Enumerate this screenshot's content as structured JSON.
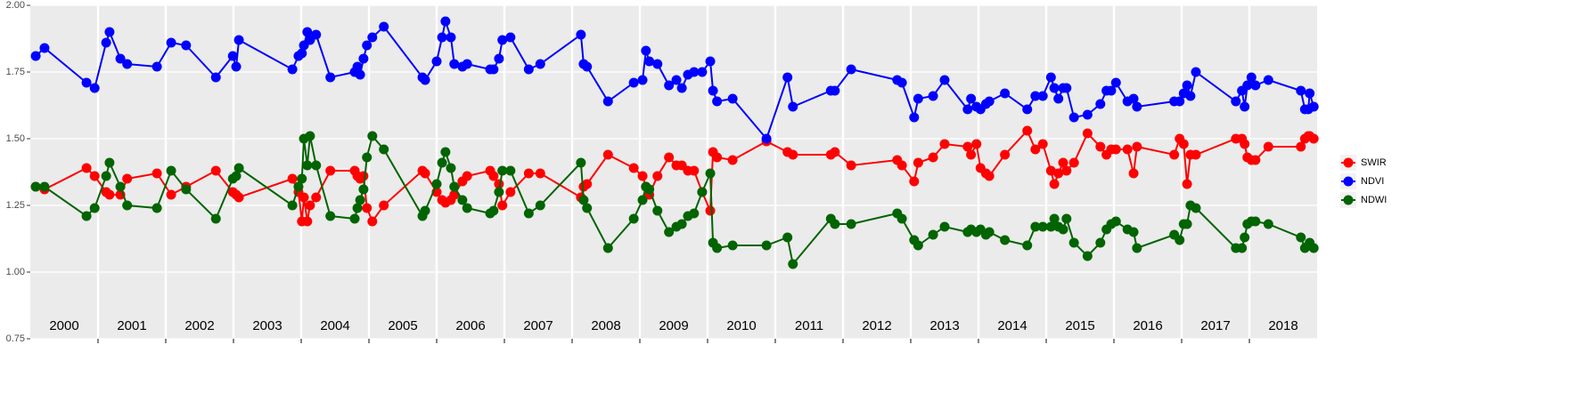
{
  "chart_data": {
    "type": "line",
    "xlim": [
      2000,
      2019
    ],
    "xticks": [
      2001,
      2002,
      2003,
      2004,
      2005,
      2006,
      2007,
      2008,
      2009,
      2010,
      2011,
      2012,
      2013,
      2014,
      2015,
      2016,
      2017,
      2018
    ],
    "year_labels": [
      {
        "value": 2000.5,
        "label": "2000"
      },
      {
        "value": 2001.5,
        "label": "2001"
      },
      {
        "value": 2002.5,
        "label": "2002"
      },
      {
        "value": 2003.5,
        "label": "2003"
      },
      {
        "value": 2004.5,
        "label": "2004"
      },
      {
        "value": 2005.5,
        "label": "2005"
      },
      {
        "value": 2006.5,
        "label": "2006"
      },
      {
        "value": 2007.5,
        "label": "2007"
      },
      {
        "value": 2008.5,
        "label": "2008"
      },
      {
        "value": 2009.5,
        "label": "2009"
      },
      {
        "value": 2010.5,
        "label": "2010"
      },
      {
        "value": 2011.5,
        "label": "2011"
      },
      {
        "value": 2012.5,
        "label": "2012"
      },
      {
        "value": 2013.5,
        "label": "2013"
      },
      {
        "value": 2014.5,
        "label": "2014"
      },
      {
        "value": 2015.5,
        "label": "2015"
      },
      {
        "value": 2016.5,
        "label": "2016"
      },
      {
        "value": 2017.5,
        "label": "2017"
      },
      {
        "value": 2018.5,
        "label": "2018"
      }
    ],
    "ylim": [
      0.75,
      2.0
    ],
    "yticks": [
      {
        "value": 0.75,
        "label": "0.75"
      },
      {
        "value": 1.0,
        "label": "1.00"
      },
      {
        "value": 1.25,
        "label": "1.25"
      },
      {
        "value": 1.5,
        "label": "1.50"
      },
      {
        "value": 1.75,
        "label": "1.75"
      },
      {
        "value": 2.0,
        "label": "2.00"
      }
    ],
    "grid": true,
    "legend": "right",
    "x": [
      2000.08,
      2000.21,
      2000.83,
      2000.95,
      2001.12,
      2001.17,
      2001.33,
      2001.43,
      2001.87,
      2002.08,
      2002.3,
      2002.74,
      2002.99,
      2003.04,
      2003.08,
      2003.87,
      2003.96,
      2004.01,
      2004.04,
      2004.09,
      2004.13,
      2004.22,
      2004.43,
      2004.79,
      2004.83,
      2004.87,
      2004.92,
      2004.97,
      2005.05,
      2005.22,
      2005.79,
      2005.83,
      2006.0,
      2006.08,
      2006.13,
      2006.21,
      2006.26,
      2006.38,
      2006.45,
      2006.79,
      2006.84,
      2006.92,
      2006.97,
      2007.09,
      2007.36,
      2007.53,
      2008.13,
      2008.17,
      2008.22,
      2008.53,
      2008.91,
      2009.04,
      2009.09,
      2009.14,
      2009.26,
      2009.43,
      2009.54,
      2009.62,
      2009.71,
      2009.8,
      2009.92,
      2010.04,
      2010.08,
      2010.14,
      2010.37,
      2010.87,
      2011.18,
      2011.26,
      2011.82,
      2011.88,
      2012.12,
      2012.8,
      2012.87,
      2013.05,
      2013.11,
      2013.33,
      2013.5,
      2013.84,
      2013.89,
      2013.97,
      2014.03,
      2014.11,
      2014.16,
      2014.39,
      2014.72,
      2014.84,
      2014.95,
      2015.07,
      2015.12,
      2015.18,
      2015.25,
      2015.3,
      2015.41,
      2015.61,
      2015.8,
      2015.89,
      2015.96,
      2016.03,
      2016.2,
      2016.29,
      2016.34,
      2016.89,
      2016.97,
      2017.03,
      2017.08,
      2017.13,
      2017.21,
      2017.8,
      2017.89,
      2017.93,
      2017.97,
      2018.03,
      2018.09,
      2018.28,
      2018.76,
      2018.82,
      2018.87,
      2018.89,
      2018.95
    ],
    "series": [
      {
        "name": "SWIR",
        "color": "#ff0000",
        "values": [
          1.32,
          1.31,
          1.39,
          1.36,
          1.3,
          1.29,
          1.29,
          1.35,
          1.37,
          1.29,
          1.32,
          1.38,
          1.3,
          1.29,
          1.28,
          1.35,
          1.3,
          1.19,
          1.28,
          1.19,
          1.25,
          1.28,
          1.38,
          1.38,
          1.36,
          1.35,
          1.36,
          1.24,
          1.19,
          1.25,
          1.38,
          1.37,
          1.3,
          1.27,
          1.26,
          1.27,
          1.29,
          1.34,
          1.36,
          1.38,
          1.36,
          1.33,
          1.25,
          1.3,
          1.37,
          1.37,
          1.28,
          1.32,
          1.33,
          1.44,
          1.39,
          1.36,
          1.32,
          1.29,
          1.36,
          1.43,
          1.4,
          1.4,
          1.38,
          1.38,
          1.3,
          1.23,
          1.45,
          1.43,
          1.42,
          1.49,
          1.45,
          1.44,
          1.44,
          1.45,
          1.4,
          1.42,
          1.4,
          1.34,
          1.41,
          1.43,
          1.48,
          1.47,
          1.44,
          1.48,
          1.39,
          1.37,
          1.36,
          1.44,
          1.53,
          1.46,
          1.48,
          1.38,
          1.33,
          1.37,
          1.41,
          1.38,
          1.41,
          1.52,
          1.47,
          1.44,
          1.46,
          1.46,
          1.46,
          1.37,
          1.47,
          1.44,
          1.5,
          1.48,
          1.33,
          1.44,
          1.44,
          1.5,
          1.5,
          1.48,
          1.43,
          1.42,
          1.42,
          1.47,
          1.47,
          1.5,
          1.51,
          1.51,
          1.5
        ]
      },
      {
        "name": "NDVI",
        "color": "#0000ff",
        "values": [
          1.81,
          1.84,
          1.71,
          1.69,
          1.86,
          1.9,
          1.8,
          1.78,
          1.77,
          1.86,
          1.85,
          1.73,
          1.81,
          1.77,
          1.87,
          1.76,
          1.81,
          1.82,
          1.85,
          1.9,
          1.87,
          1.89,
          1.73,
          1.75,
          1.77,
          1.74,
          1.8,
          1.85,
          1.88,
          1.92,
          1.73,
          1.72,
          1.79,
          1.88,
          1.94,
          1.88,
          1.78,
          1.77,
          1.78,
          1.76,
          1.76,
          1.8,
          1.87,
          1.88,
          1.76,
          1.78,
          1.89,
          1.78,
          1.77,
          1.64,
          1.71,
          1.72,
          1.83,
          1.79,
          1.78,
          1.7,
          1.72,
          1.69,
          1.74,
          1.75,
          1.75,
          1.79,
          1.68,
          1.64,
          1.65,
          1.5,
          1.73,
          1.62,
          1.68,
          1.68,
          1.76,
          1.72,
          1.71,
          1.58,
          1.65,
          1.66,
          1.72,
          1.61,
          1.65,
          1.62,
          1.61,
          1.63,
          1.64,
          1.67,
          1.61,
          1.66,
          1.66,
          1.73,
          1.69,
          1.65,
          1.69,
          1.69,
          1.58,
          1.59,
          1.63,
          1.68,
          1.68,
          1.71,
          1.64,
          1.65,
          1.62,
          1.64,
          1.64,
          1.67,
          1.7,
          1.66,
          1.75,
          1.64,
          1.68,
          1.62,
          1.7,
          1.73,
          1.7,
          1.72,
          1.68,
          1.61,
          1.61,
          1.67,
          1.62
        ]
      },
      {
        "name": "NDWI",
        "color": "#006400",
        "values": [
          1.32,
          1.32,
          1.21,
          1.24,
          1.36,
          1.41,
          1.32,
          1.25,
          1.24,
          1.38,
          1.31,
          1.2,
          1.35,
          1.36,
          1.39,
          1.25,
          1.32,
          1.35,
          1.5,
          1.4,
          1.51,
          1.4,
          1.21,
          1.2,
          1.24,
          1.27,
          1.31,
          1.43,
          1.51,
          1.46,
          1.21,
          1.23,
          1.33,
          1.41,
          1.45,
          1.39,
          1.32,
          1.27,
          1.24,
          1.22,
          1.23,
          1.3,
          1.38,
          1.38,
          1.22,
          1.25,
          1.41,
          1.27,
          1.24,
          1.09,
          1.2,
          1.27,
          1.32,
          1.31,
          1.23,
          1.15,
          1.17,
          1.18,
          1.21,
          1.22,
          1.3,
          1.37,
          1.11,
          1.09,
          1.1,
          1.1,
          1.13,
          1.03,
          1.2,
          1.18,
          1.18,
          1.22,
          1.2,
          1.12,
          1.1,
          1.14,
          1.17,
          1.15,
          1.16,
          1.15,
          1.16,
          1.14,
          1.15,
          1.12,
          1.1,
          1.17,
          1.17,
          1.17,
          1.2,
          1.17,
          1.16,
          1.2,
          1.11,
          1.06,
          1.11,
          1.16,
          1.18,
          1.19,
          1.16,
          1.15,
          1.09,
          1.14,
          1.12,
          1.18,
          1.18,
          1.25,
          1.24,
          1.09,
          1.09,
          1.13,
          1.18,
          1.19,
          1.19,
          1.18,
          1.13,
          1.09,
          1.1,
          1.11,
          1.09
        ]
      }
    ]
  }
}
